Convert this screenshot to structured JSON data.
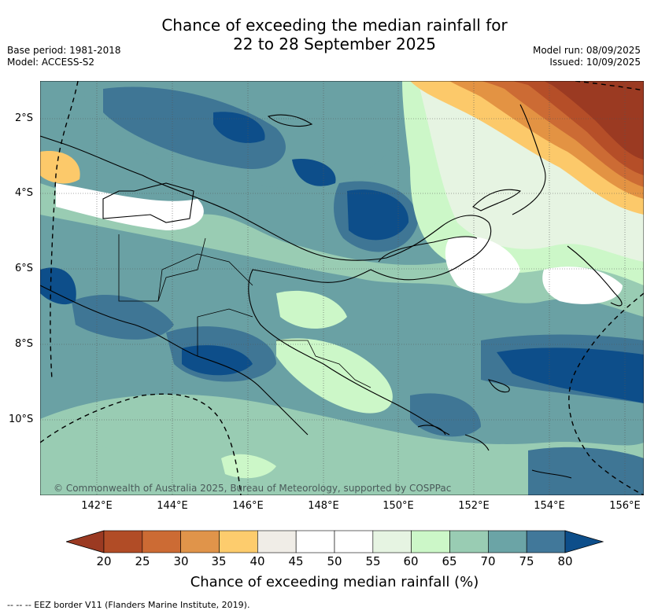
{
  "title_line1": "Chance of exceeding the median rainfall for",
  "title_line2": "22 to 28 September 2025",
  "meta_left": [
    "Base period: 1981-2018",
    "Model: ACCESS-S2"
  ],
  "meta_right": [
    "Model run: 08/09/2025",
    "Issued: 10/09/2025"
  ],
  "map": {
    "region": "Papua New Guinea",
    "lat_ticks": [
      "2°S",
      "4°S",
      "6°S",
      "8°S",
      "10°S"
    ],
    "lon_ticks": [
      "142°E",
      "144°E",
      "146°E",
      "148°E",
      "150°E",
      "152°E",
      "154°E",
      "156°E"
    ],
    "copyright": "© Commonwealth of Australia 2025, Bureau of Meteorology, supported by COSPPac",
    "colors": {
      "c20": "#9b3a22",
      "c25": "#b54e28",
      "c30": "#cc6b34",
      "c35": "#e39343",
      "c40": "#fcc96a",
      "c45": "#f0ede7",
      "c50": "#ffffff",
      "c55": "#ffffff",
      "c60": "#e6f4e2",
      "c65": "#cbf6c7",
      "c70": "#99ccb3",
      "c75": "#6aa1a4",
      "c80": "#3f7695",
      "c85": "#0d4e8a"
    }
  },
  "colorbar": {
    "ticks": [
      "20",
      "25",
      "30",
      "35",
      "40",
      "45",
      "50",
      "55",
      "60",
      "65",
      "70",
      "75",
      "80"
    ],
    "colors": [
      "#b14c26",
      "#cc6b34",
      "#e0944a",
      "#fdcc6d",
      "#f0ede7",
      "#ffffff",
      "#ffffff",
      "#e6f4e2",
      "#ccf7c8",
      "#99ccb3",
      "#6ba4a6",
      "#41789a"
    ],
    "under_color": "#9b3a22",
    "over_color": "#0d4e8a",
    "label": "Chance of exceeding median rainfall (%)"
  },
  "footer": "--  --  -- EEZ border V11 (Flanders Marine Institute, 2019)."
}
